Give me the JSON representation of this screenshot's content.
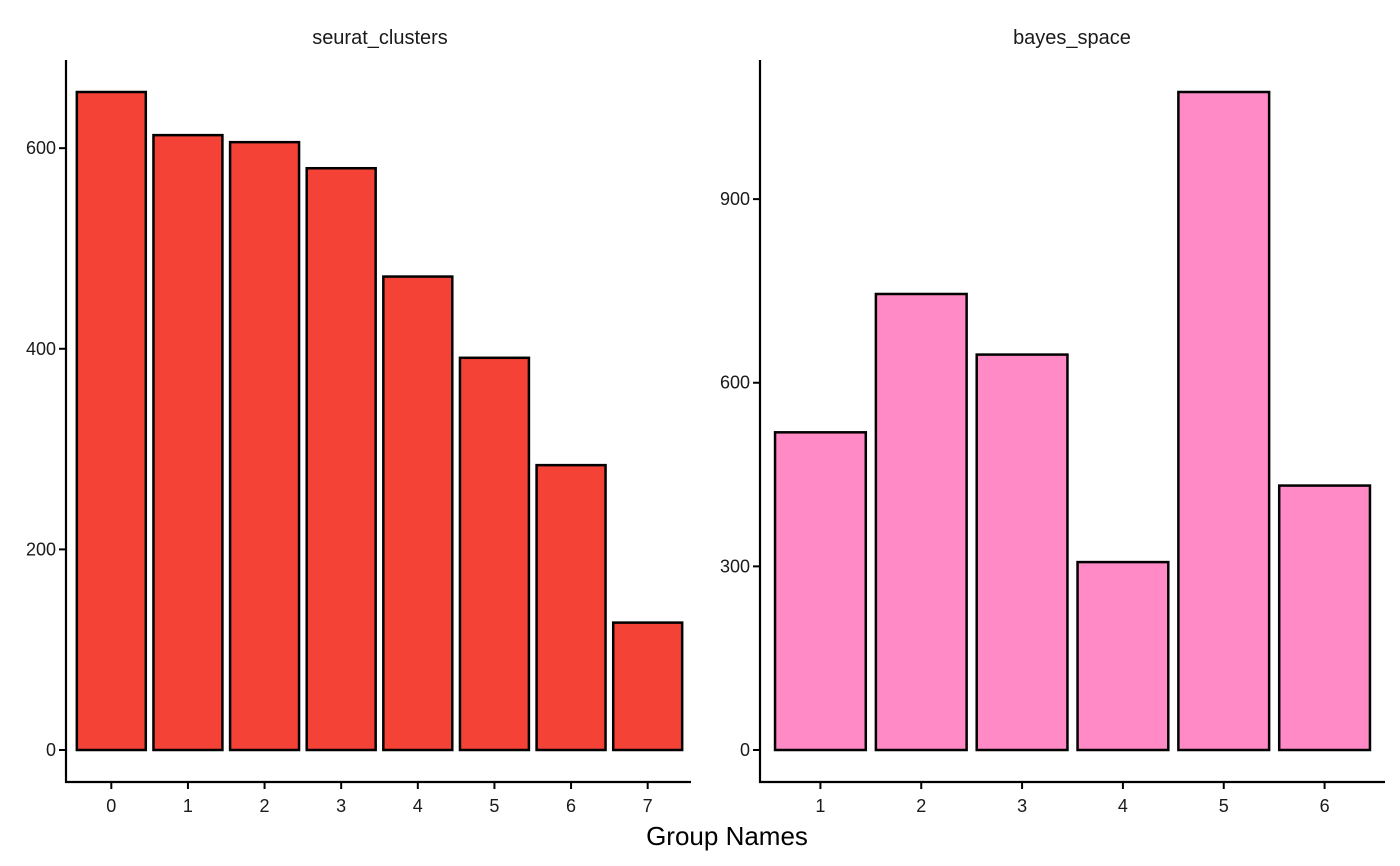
{
  "chart_data": {
    "xlabel": "Group Names",
    "panels": [
      {
        "type": "bar",
        "title": "seurat_clusters",
        "categories": [
          "0",
          "1",
          "2",
          "3",
          "4",
          "5",
          "6",
          "7"
        ],
        "values": [
          656,
          613,
          606,
          580,
          472,
          391,
          284,
          127
        ],
        "ylim": [
          0,
          656
        ],
        "yticks": [
          0,
          200,
          400,
          600
        ],
        "bar_color": "#F44336",
        "grid": false
      },
      {
        "type": "bar",
        "title": "bayes_space",
        "categories": [
          "1",
          "2",
          "3",
          "4",
          "5",
          "6"
        ],
        "values": [
          519,
          745,
          646,
          307,
          1075,
          432
        ],
        "ylim": [
          0,
          1075
        ],
        "yticks": [
          0,
          300,
          600,
          900
        ],
        "bar_color": "#FF8AC6",
        "grid": false
      }
    ]
  }
}
